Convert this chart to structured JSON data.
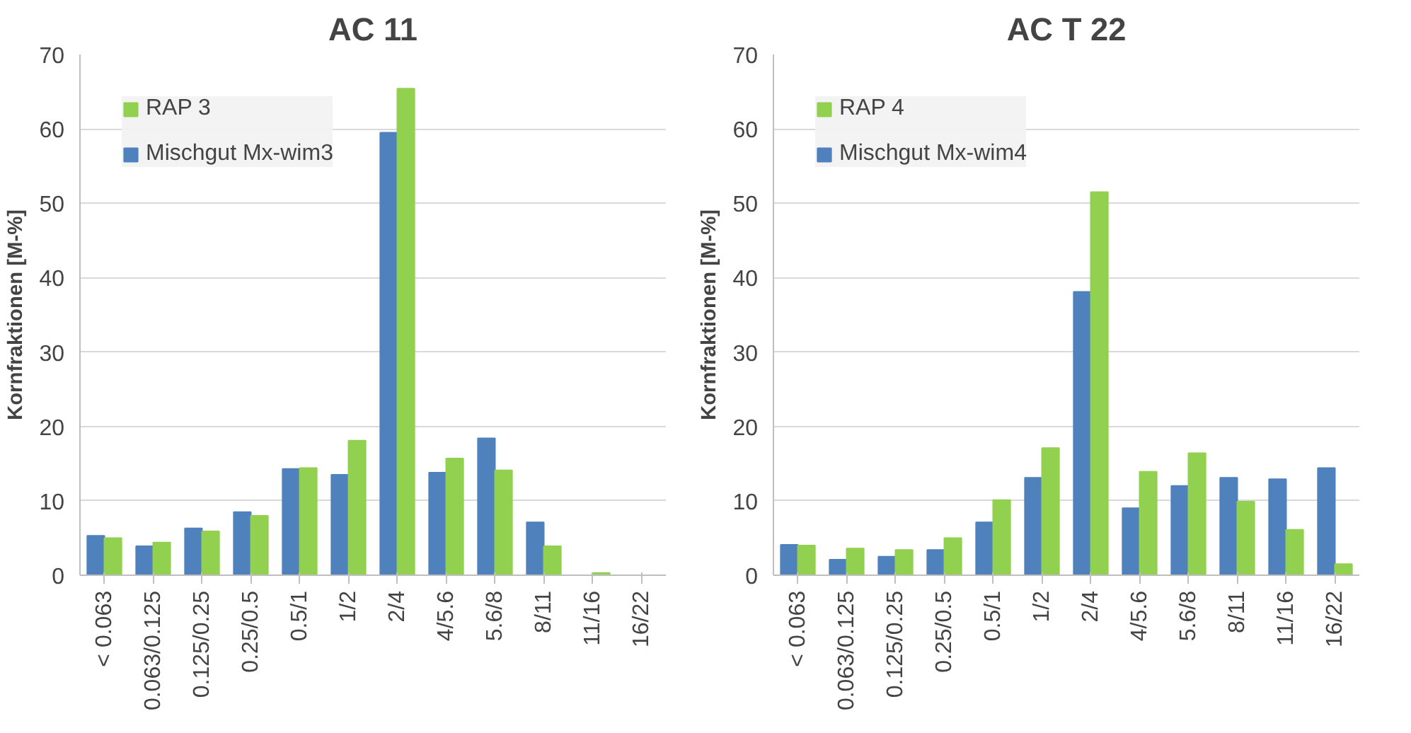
{
  "chart_data": [
    {
      "type": "bar",
      "title": "AC 11",
      "ylabel": "Kornfraktionen [M-%]",
      "categories": [
        "< 0.063",
        "0.063/0.125",
        "0.125/0.25",
        "0.25/0.5",
        "0.5/1",
        "1/2",
        "2/4",
        "4/5.6",
        "5.6/8",
        "8/11",
        "11/16",
        "16/22"
      ],
      "ylim": [
        0,
        70
      ],
      "yticks": [
        0,
        10,
        20,
        30,
        40,
        50,
        60,
        70
      ],
      "grid": "y",
      "legend": "top left",
      "series": [
        {
          "name": "Mischgut Mx-wim3",
          "color": "#4f81bd",
          "values": [
            5.3,
            3.9,
            6.3,
            8.5,
            14.3,
            13.5,
            59.5,
            13.8,
            18.4,
            7.1,
            0,
            0
          ]
        },
        {
          "name": "RAP 3",
          "color": "#92d050",
          "values": [
            5.0,
            4.4,
            5.9,
            8.0,
            14.4,
            18.1,
            65.4,
            15.7,
            14.1,
            3.9,
            0.3,
            0
          ]
        }
      ]
    },
    {
      "type": "bar",
      "title": "AC T 22",
      "ylabel": "Kornfraktionen [M-%]",
      "categories": [
        "< 0.063",
        "0.063/0.125",
        "0.125/0.25",
        "0.25/0.5",
        "0.5/1",
        "1/2",
        "2/4",
        "4/5.6",
        "5.6/8",
        "8/11",
        "11/16",
        "16/22"
      ],
      "ylim": [
        0,
        70
      ],
      "yticks": [
        0,
        10,
        20,
        30,
        40,
        50,
        60,
        70
      ],
      "grid": "y",
      "legend": "top left",
      "series": [
        {
          "name": "Mischgut Mx-wim4",
          "color": "#4f81bd",
          "values": [
            4.1,
            2.1,
            2.5,
            3.4,
            7.1,
            13.1,
            38.1,
            9.0,
            12.0,
            13.1,
            12.9,
            14.4
          ]
        },
        {
          "name": "RAP 4",
          "color": "#92d050",
          "values": [
            4.0,
            3.6,
            3.4,
            5.0,
            10.1,
            17.1,
            51.5,
            13.9,
            16.4,
            9.9,
            6.1,
            1.5
          ]
        }
      ]
    }
  ]
}
